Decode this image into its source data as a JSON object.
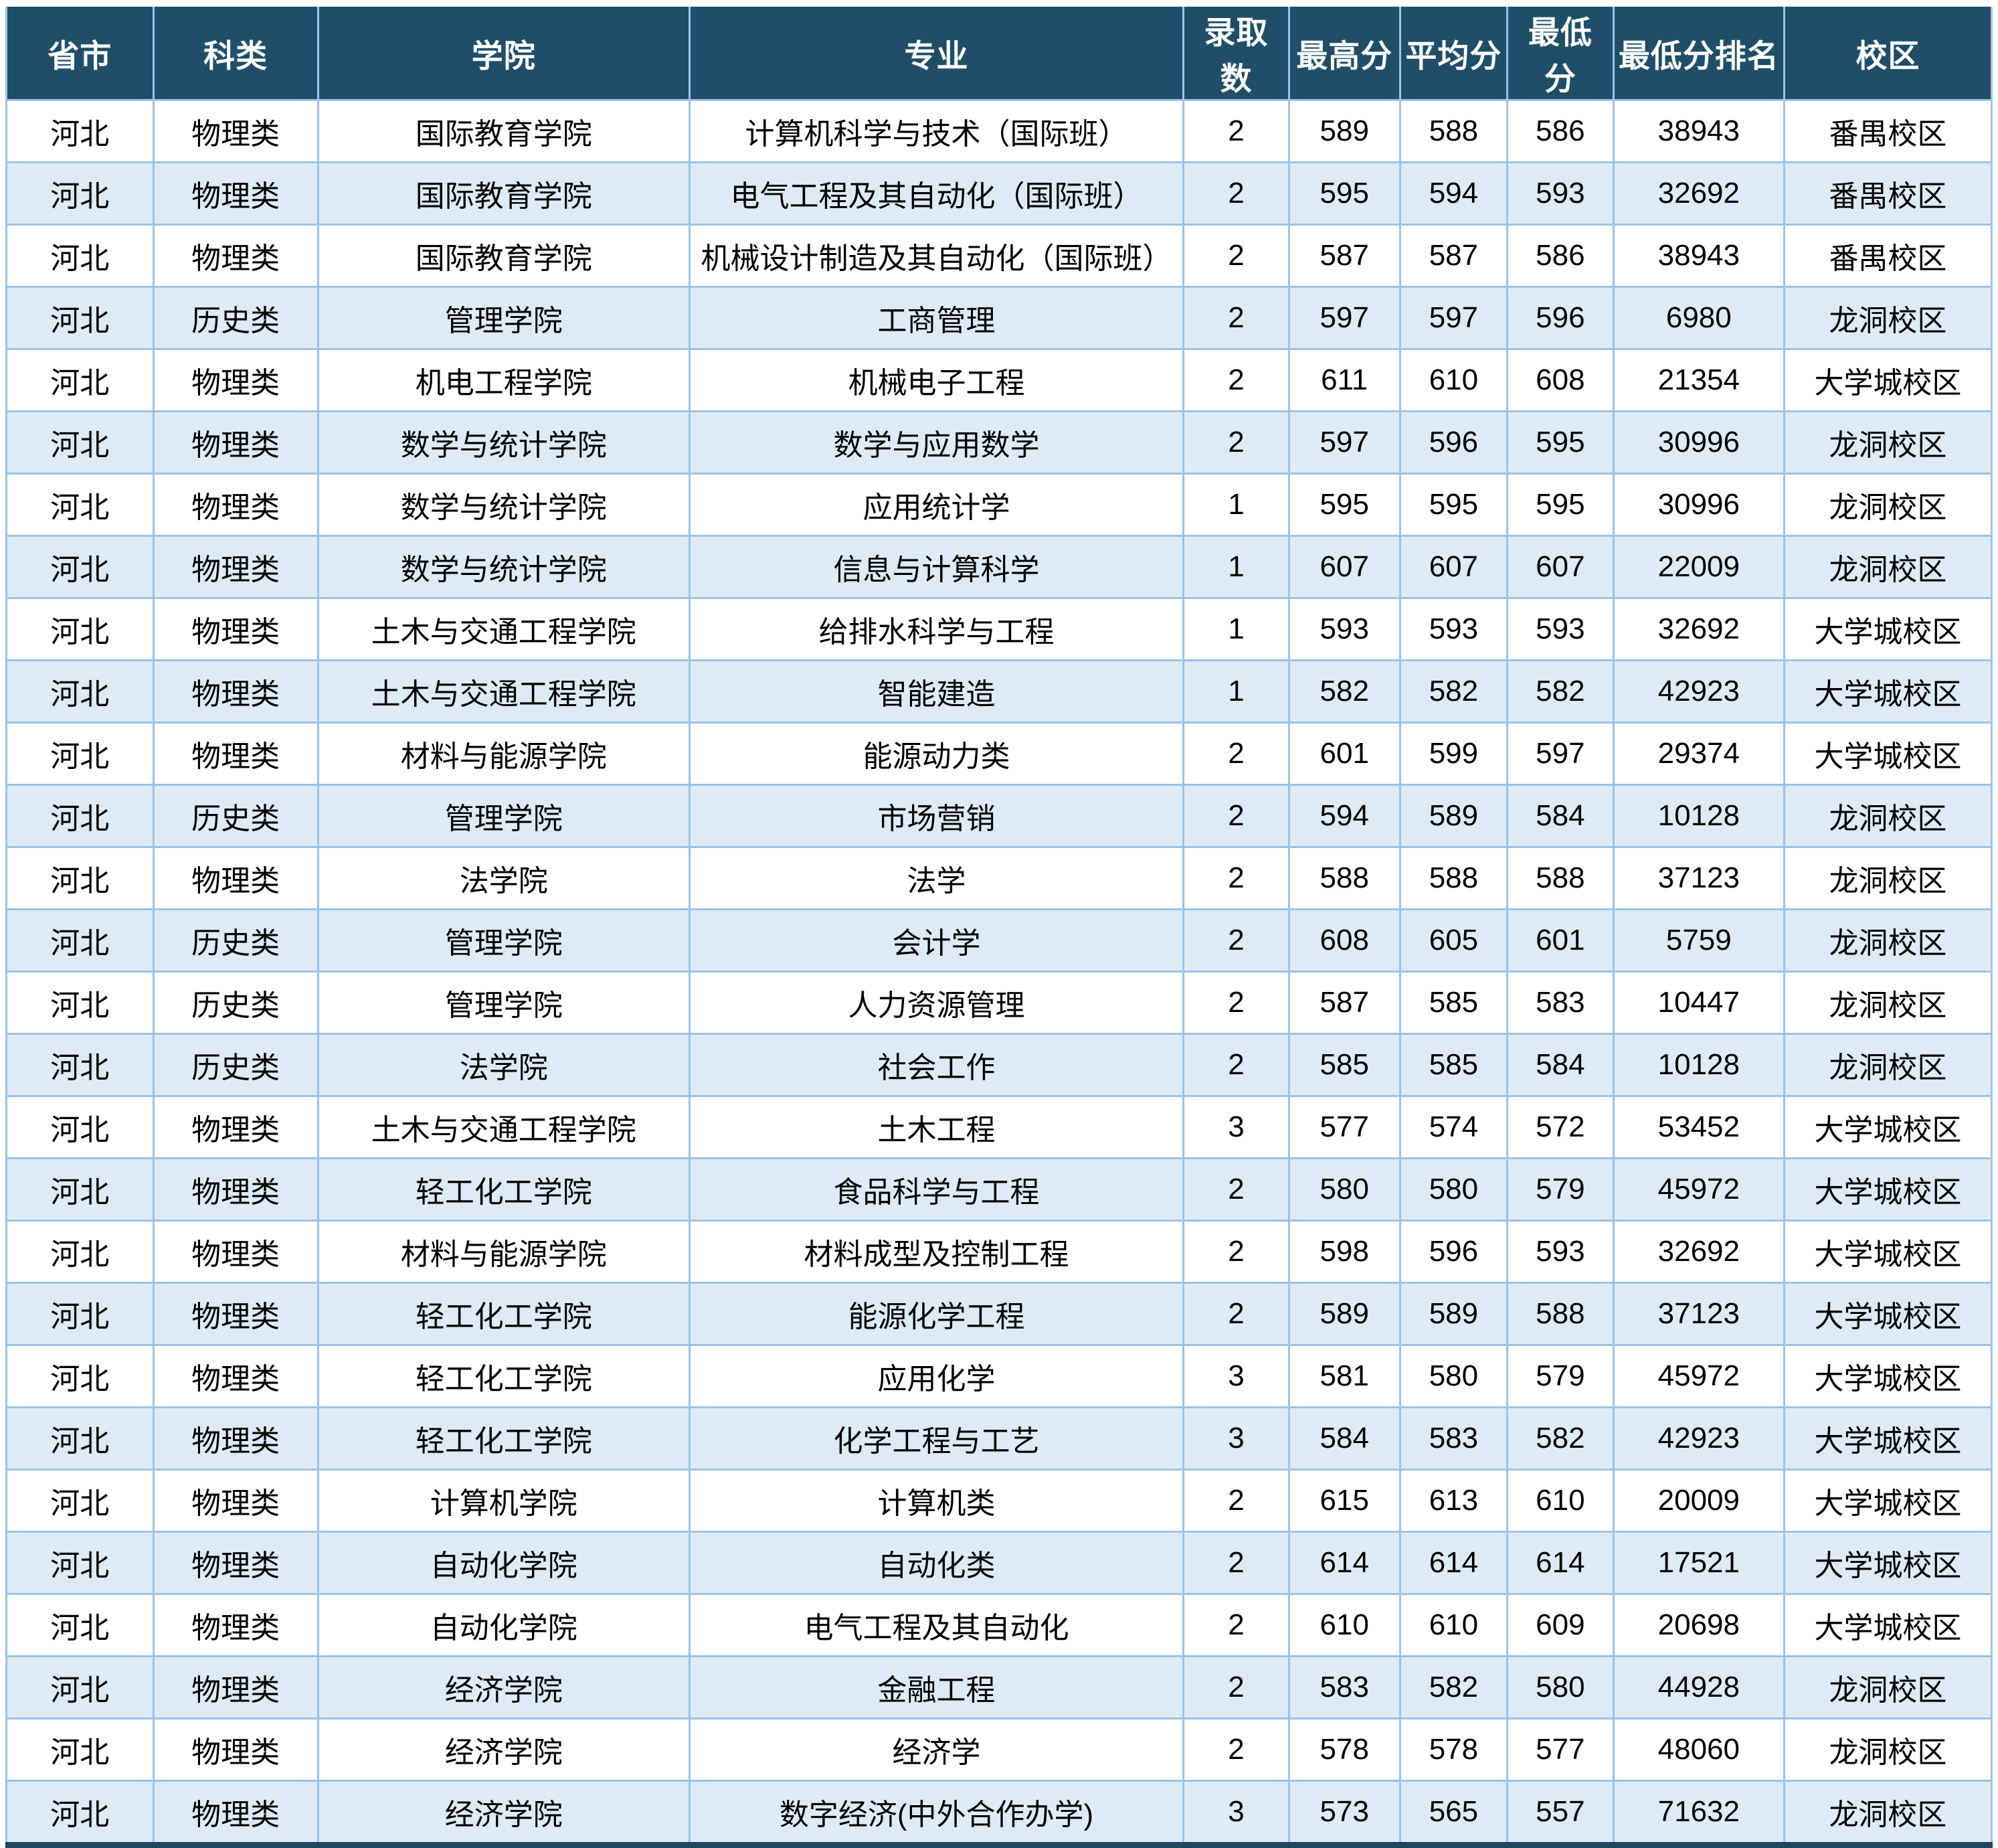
{
  "table": {
    "columns": [
      "省市",
      "科类",
      "学院",
      "专业",
      "录取数",
      "最高分",
      "平均分",
      "最低分",
      "最低分排名",
      "校区"
    ],
    "rows": [
      [
        "河北",
        "物理类",
        "国际教育学院",
        "计算机科学与技术（国际班）",
        "2",
        "589",
        "588",
        "586",
        "38943",
        "番禺校区"
      ],
      [
        "河北",
        "物理类",
        "国际教育学院",
        "电气工程及其自动化（国际班）",
        "2",
        "595",
        "594",
        "593",
        "32692",
        "番禺校区"
      ],
      [
        "河北",
        "物理类",
        "国际教育学院",
        "机械设计制造及其自动化（国际班）",
        "2",
        "587",
        "587",
        "586",
        "38943",
        "番禺校区"
      ],
      [
        "河北",
        "历史类",
        "管理学院",
        "工商管理",
        "2",
        "597",
        "597",
        "596",
        "6980",
        "龙洞校区"
      ],
      [
        "河北",
        "物理类",
        "机电工程学院",
        "机械电子工程",
        "2",
        "611",
        "610",
        "608",
        "21354",
        "大学城校区"
      ],
      [
        "河北",
        "物理类",
        "数学与统计学院",
        "数学与应用数学",
        "2",
        "597",
        "596",
        "595",
        "30996",
        "龙洞校区"
      ],
      [
        "河北",
        "物理类",
        "数学与统计学院",
        "应用统计学",
        "1",
        "595",
        "595",
        "595",
        "30996",
        "龙洞校区"
      ],
      [
        "河北",
        "物理类",
        "数学与统计学院",
        "信息与计算科学",
        "1",
        "607",
        "607",
        "607",
        "22009",
        "龙洞校区"
      ],
      [
        "河北",
        "物理类",
        "土木与交通工程学院",
        "给排水科学与工程",
        "1",
        "593",
        "593",
        "593",
        "32692",
        "大学城校区"
      ],
      [
        "河北",
        "物理类",
        "土木与交通工程学院",
        "智能建造",
        "1",
        "582",
        "582",
        "582",
        "42923",
        "大学城校区"
      ],
      [
        "河北",
        "物理类",
        "材料与能源学院",
        "能源动力类",
        "2",
        "601",
        "599",
        "597",
        "29374",
        "大学城校区"
      ],
      [
        "河北",
        "历史类",
        "管理学院",
        "市场营销",
        "2",
        "594",
        "589",
        "584",
        "10128",
        "龙洞校区"
      ],
      [
        "河北",
        "物理类",
        "法学院",
        "法学",
        "2",
        "588",
        "588",
        "588",
        "37123",
        "龙洞校区"
      ],
      [
        "河北",
        "历史类",
        "管理学院",
        "会计学",
        "2",
        "608",
        "605",
        "601",
        "5759",
        "龙洞校区"
      ],
      [
        "河北",
        "历史类",
        "管理学院",
        "人力资源管理",
        "2",
        "587",
        "585",
        "583",
        "10447",
        "龙洞校区"
      ],
      [
        "河北",
        "历史类",
        "法学院",
        "社会工作",
        "2",
        "585",
        "585",
        "584",
        "10128",
        "龙洞校区"
      ],
      [
        "河北",
        "物理类",
        "土木与交通工程学院",
        "土木工程",
        "3",
        "577",
        "574",
        "572",
        "53452",
        "大学城校区"
      ],
      [
        "河北",
        "物理类",
        "轻工化工学院",
        "食品科学与工程",
        "2",
        "580",
        "580",
        "579",
        "45972",
        "大学城校区"
      ],
      [
        "河北",
        "物理类",
        "材料与能源学院",
        "材料成型及控制工程",
        "2",
        "598",
        "596",
        "593",
        "32692",
        "大学城校区"
      ],
      [
        "河北",
        "物理类",
        "轻工化工学院",
        "能源化学工程",
        "2",
        "589",
        "589",
        "588",
        "37123",
        "大学城校区"
      ],
      [
        "河北",
        "物理类",
        "轻工化工学院",
        "应用化学",
        "3",
        "581",
        "580",
        "579",
        "45972",
        "大学城校区"
      ],
      [
        "河北",
        "物理类",
        "轻工化工学院",
        "化学工程与工艺",
        "3",
        "584",
        "583",
        "582",
        "42923",
        "大学城校区"
      ],
      [
        "河北",
        "物理类",
        "计算机学院",
        "计算机类",
        "2",
        "615",
        "613",
        "610",
        "20009",
        "大学城校区"
      ],
      [
        "河北",
        "物理类",
        "自动化学院",
        "自动化类",
        "2",
        "614",
        "614",
        "614",
        "17521",
        "大学城校区"
      ],
      [
        "河北",
        "物理类",
        "自动化学院",
        "电气工程及其自动化",
        "2",
        "610",
        "610",
        "609",
        "20698",
        "大学城校区"
      ],
      [
        "河北",
        "物理类",
        "经济学院",
        "金融工程",
        "2",
        "583",
        "582",
        "580",
        "44928",
        "龙洞校区"
      ],
      [
        "河北",
        "物理类",
        "经济学院",
        "经济学",
        "2",
        "578",
        "578",
        "577",
        "48060",
        "龙洞校区"
      ],
      [
        "河北",
        "物理类",
        "经济学院",
        "数字经济(中外合作办学)",
        "3",
        "573",
        "565",
        "557",
        "71632",
        "龙洞校区"
      ]
    ]
  },
  "colors": {
    "header_bg": "#204E68",
    "header_text": "#FFFFFF",
    "row_alt_bg": "#DEEBF6",
    "grid_border": "#9DC3E6",
    "bottom_border": "#1D4660",
    "body_text": "#000000"
  }
}
